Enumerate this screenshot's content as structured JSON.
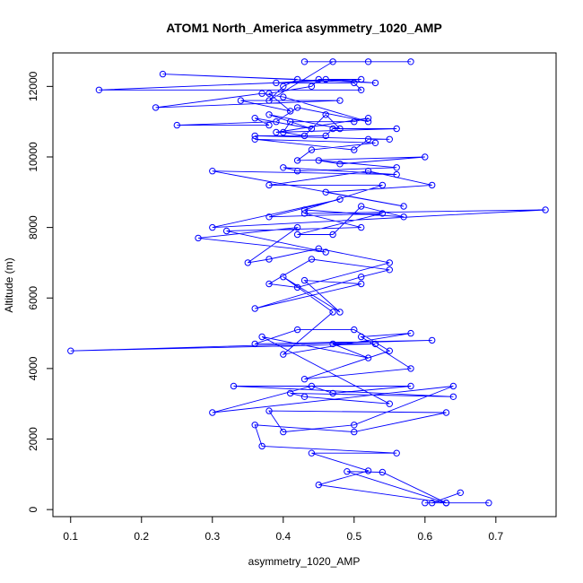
{
  "chart_data": {
    "type": "line",
    "title": "ATOM1 North_America asymmetry_1020_AMP",
    "xlabel": "asymmetry_1020_AMP",
    "ylabel": "Altitude (m)",
    "xlim": [
      0.075,
      0.785
    ],
    "ylim": [
      -200,
      12950
    ],
    "xticks": [
      0.1,
      0.2,
      0.3,
      0.4,
      0.5,
      0.6,
      0.7
    ],
    "xtick_labels": [
      "0.1",
      "0.2",
      "0.3",
      "0.4",
      "0.5",
      "0.6",
      "0.7"
    ],
    "yticks": [
      0,
      2000,
      4000,
      6000,
      8000,
      10000,
      12000
    ],
    "ytick_labels": [
      "0",
      "2000",
      "4000",
      "6000",
      "8000",
      "10000",
      "12000"
    ],
    "grid": false,
    "legend": "none",
    "color": "#0000ff",
    "marker": "open-circle",
    "series": [
      {
        "x": [
          0.65,
          0.61,
          0.69,
          0.6,
          0.63,
          0.54,
          0.49,
          0.63,
          0.45,
          0.52,
          0.44,
          0.56,
          0.37,
          0.36,
          0.5,
          0.63,
          0.38,
          0.4,
          0.5,
          0.64,
          0.3,
          0.44,
          0.47,
          0.58,
          0.33,
          0.64,
          0.41,
          0.43,
          0.55,
          0.37,
          0.52,
          0.47,
          0.53,
          0.1,
          0.61,
          0.36,
          0.42,
          0.5,
          0.55,
          0.43,
          0.58,
          0.51,
          0.58,
          0.4,
          0.47,
          0.4,
          0.48,
          0.43,
          0.51,
          0.36,
          0.51,
          0.55,
          0.44,
          0.38,
          0.42,
          0.55,
          0.45,
          0.38,
          0.35,
          0.42,
          0.28,
          0.46,
          0.32,
          0.51,
          0.43,
          0.77,
          0.3,
          0.48,
          0.38,
          0.54,
          0.42,
          0.47,
          0.51,
          0.57,
          0.43,
          0.54,
          0.38,
          0.52,
          0.61,
          0.46,
          0.57,
          0.3,
          0.56,
          0.4,
          0.42,
          0.56,
          0.45,
          0.48,
          0.6,
          0.42,
          0.44,
          0.53,
          0.36,
          0.5,
          0.52,
          0.55,
          0.36,
          0.46,
          0.47,
          0.56,
          0.39,
          0.52,
          0.5,
          0.41,
          0.4,
          0.43,
          0.46,
          0.48,
          0.38,
          0.44,
          0.36,
          0.38,
          0.25,
          0.39,
          0.42,
          0.52,
          0.4,
          0.37,
          0.22,
          0.48,
          0.34,
          0.41,
          0.38,
          0.44,
          0.45,
          0.51,
          0.14,
          0.51,
          0.5,
          0.39,
          0.46,
          0.53,
          0.23,
          0.42,
          0.4,
          0.38,
          0.47,
          0.52,
          0.58,
          0.43
        ],
        "y": [
          480,
          190,
          190,
          190,
          190,
          1060,
          1080,
          190,
          700,
          1100,
          1600,
          1600,
          1800,
          2400,
          2200,
          2750,
          2800,
          2200,
          2400,
          3500,
          2750,
          3500,
          3300,
          3500,
          3500,
          3200,
          3300,
          3200,
          3000,
          4900,
          4300,
          4700,
          4700,
          4500,
          4800,
          4700,
          5100,
          5100,
          4500,
          3700,
          4000,
          4900,
          5000,
          4400,
          5600,
          6600,
          5600,
          6500,
          6400,
          5700,
          6600,
          6800,
          7100,
          6400,
          6300,
          7000,
          7400,
          7100,
          7000,
          8000,
          7700,
          7300,
          7900,
          8000,
          8400,
          8500,
          8000,
          8800,
          8300,
          8400,
          7800,
          7800,
          8600,
          8300,
          8500,
          9200,
          9200,
          9600,
          9200,
          9000,
          8600,
          9600,
          9500,
          9700,
          9600,
          9700,
          9900,
          9800,
          10000,
          9900,
          10200,
          10400,
          10500,
          10200,
          10500,
          10500,
          10600,
          10600,
          10800,
          10800,
          10700,
          11100,
          11000,
          11000,
          10700,
          10600,
          11200,
          10800,
          11200,
          10800,
          11100,
          10900,
          10900,
          11000,
          11400,
          11000,
          11700,
          11800,
          11400,
          11600,
          11600,
          11300,
          11800,
          12000,
          12200,
          12200,
          11900,
          11900,
          12100,
          12100,
          12200,
          12100,
          12350,
          12200,
          12000,
          11600,
          12700,
          12700,
          12700,
          12700
        ]
      }
    ]
  }
}
